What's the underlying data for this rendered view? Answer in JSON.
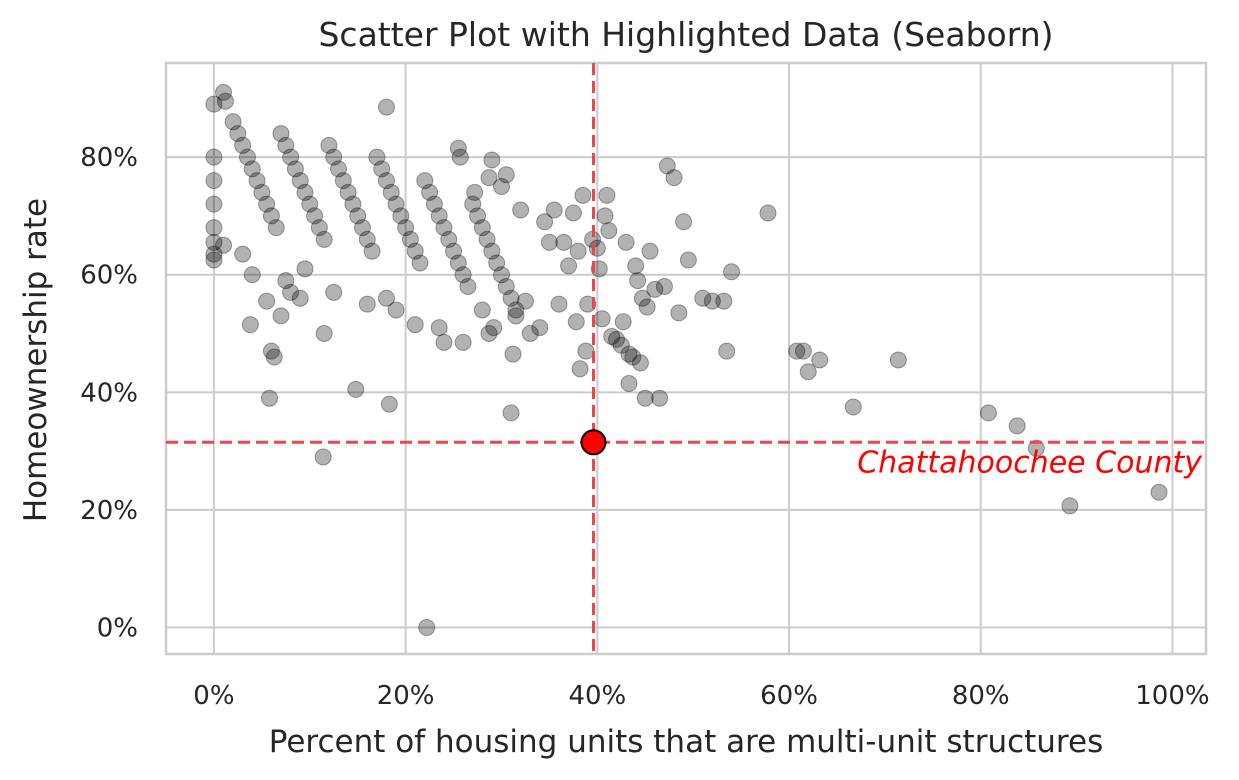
{
  "chart_data": {
    "type": "scatter",
    "title": "Scatter Plot with Highlighted Data (Seaborn)",
    "xlabel": "Percent of housing units that are multi-unit structures",
    "ylabel": "Homeownership rate",
    "xlim": [
      -0.05,
      1.035
    ],
    "ylim": [
      -0.045,
      0.96
    ],
    "xticks": [
      0,
      0.2,
      0.4,
      0.6,
      0.8,
      1.0
    ],
    "xtick_labels": [
      "0%",
      "20%",
      "40%",
      "60%",
      "80%",
      "100%"
    ],
    "yticks": [
      0,
      0.2,
      0.4,
      0.6,
      0.8
    ],
    "ytick_labels": [
      "0%",
      "20%",
      "40%",
      "60%",
      "80%"
    ],
    "grid": true,
    "point_color": "#000000",
    "point_alpha": 0.3,
    "highlight": {
      "label": "Chattahoochee County",
      "x": 0.396,
      "y": 0.315,
      "color": "#ff0000",
      "line_color": "#e8474b"
    },
    "points": [
      [
        0.01,
        0.91
      ],
      [
        0.012,
        0.895
      ],
      [
        0.0,
        0.89
      ],
      [
        0.0,
        0.76
      ],
      [
        0.0,
        0.72
      ],
      [
        0.0,
        0.68
      ],
      [
        0.0,
        0.655
      ],
      [
        0.0,
        0.635
      ],
      [
        0.0,
        0.625
      ],
      [
        0.0,
        0.8
      ],
      [
        0.01,
        0.65
      ],
      [
        0.03,
        0.635
      ],
      [
        0.04,
        0.6
      ],
      [
        0.038,
        0.515
      ],
      [
        0.055,
        0.555
      ],
      [
        0.06,
        0.47
      ],
      [
        0.063,
        0.46
      ],
      [
        0.058,
        0.39
      ],
      [
        0.07,
        0.53
      ],
      [
        0.075,
        0.59
      ],
      [
        0.08,
        0.57
      ],
      [
        0.09,
        0.56
      ],
      [
        0.095,
        0.61
      ],
      [
        0.115,
        0.5
      ],
      [
        0.114,
        0.29
      ],
      [
        0.125,
        0.57
      ],
      [
        0.148,
        0.405
      ],
      [
        0.16,
        0.55
      ],
      [
        0.18,
        0.885
      ],
      [
        0.183,
        0.38
      ],
      [
        0.18,
        0.56
      ],
      [
        0.19,
        0.54
      ],
      [
        0.21,
        0.515
      ],
      [
        0.222,
        0.0
      ],
      [
        0.235,
        0.51
      ],
      [
        0.24,
        0.485
      ],
      [
        0.255,
        0.815
      ],
      [
        0.257,
        0.8
      ],
      [
        0.26,
        0.485
      ],
      [
        0.272,
        0.74
      ],
      [
        0.28,
        0.54
      ],
      [
        0.287,
        0.5
      ],
      [
        0.287,
        0.765
      ],
      [
        0.29,
        0.795
      ],
      [
        0.292,
        0.51
      ],
      [
        0.3,
        0.75
      ],
      [
        0.305,
        0.77
      ],
      [
        0.31,
        0.365
      ],
      [
        0.312,
        0.465
      ],
      [
        0.315,
        0.53
      ],
      [
        0.32,
        0.71
      ],
      [
        0.325,
        0.555
      ],
      [
        0.33,
        0.5
      ],
      [
        0.34,
        0.51
      ],
      [
        0.345,
        0.69
      ],
      [
        0.35,
        0.655
      ],
      [
        0.355,
        0.71
      ],
      [
        0.36,
        0.55
      ],
      [
        0.365,
        0.655
      ],
      [
        0.37,
        0.615
      ],
      [
        0.375,
        0.705
      ],
      [
        0.378,
        0.52
      ],
      [
        0.38,
        0.64
      ],
      [
        0.382,
        0.44
      ],
      [
        0.385,
        0.735
      ],
      [
        0.388,
        0.47
      ],
      [
        0.39,
        0.55
      ],
      [
        0.395,
        0.66
      ],
      [
        0.4,
        0.645
      ],
      [
        0.402,
        0.61
      ],
      [
        0.405,
        0.525
      ],
      [
        0.408,
        0.7
      ],
      [
        0.41,
        0.735
      ],
      [
        0.412,
        0.675
      ],
      [
        0.415,
        0.495
      ],
      [
        0.42,
        0.49
      ],
      [
        0.425,
        0.48
      ],
      [
        0.427,
        0.52
      ],
      [
        0.43,
        0.655
      ],
      [
        0.433,
        0.465
      ],
      [
        0.433,
        0.415
      ],
      [
        0.437,
        0.46
      ],
      [
        0.44,
        0.615
      ],
      [
        0.442,
        0.59
      ],
      [
        0.445,
        0.45
      ],
      [
        0.447,
        0.56
      ],
      [
        0.45,
        0.39
      ],
      [
        0.452,
        0.545
      ],
      [
        0.455,
        0.64
      ],
      [
        0.46,
        0.575
      ],
      [
        0.465,
        0.39
      ],
      [
        0.47,
        0.58
      ],
      [
        0.473,
        0.785
      ],
      [
        0.48,
        0.765
      ],
      [
        0.485,
        0.535
      ],
      [
        0.49,
        0.69
      ],
      [
        0.495,
        0.625
      ],
      [
        0.51,
        0.56
      ],
      [
        0.52,
        0.555
      ],
      [
        0.532,
        0.555
      ],
      [
        0.535,
        0.47
      ],
      [
        0.54,
        0.605
      ],
      [
        0.578,
        0.705
      ],
      [
        0.608,
        0.47
      ],
      [
        0.615,
        0.47
      ],
      [
        0.62,
        0.435
      ],
      [
        0.632,
        0.455
      ],
      [
        0.667,
        0.375
      ],
      [
        0.714,
        0.455
      ],
      [
        0.808,
        0.365
      ],
      [
        0.838,
        0.343
      ],
      [
        0.858,
        0.305
      ],
      [
        0.893,
        0.207
      ],
      [
        0.986,
        0.23
      ],
      [
        0.02,
        0.86
      ],
      [
        0.025,
        0.84
      ],
      [
        0.03,
        0.82
      ],
      [
        0.035,
        0.8
      ],
      [
        0.04,
        0.78
      ],
      [
        0.045,
        0.76
      ],
      [
        0.05,
        0.74
      ],
      [
        0.055,
        0.72
      ],
      [
        0.06,
        0.7
      ],
      [
        0.065,
        0.68
      ],
      [
        0.07,
        0.84
      ],
      [
        0.075,
        0.82
      ],
      [
        0.08,
        0.8
      ],
      [
        0.085,
        0.78
      ],
      [
        0.09,
        0.76
      ],
      [
        0.095,
        0.74
      ],
      [
        0.1,
        0.72
      ],
      [
        0.105,
        0.7
      ],
      [
        0.11,
        0.68
      ],
      [
        0.115,
        0.66
      ],
      [
        0.12,
        0.82
      ],
      [
        0.125,
        0.8
      ],
      [
        0.13,
        0.78
      ],
      [
        0.135,
        0.76
      ],
      [
        0.14,
        0.74
      ],
      [
        0.145,
        0.72
      ],
      [
        0.15,
        0.7
      ],
      [
        0.155,
        0.68
      ],
      [
        0.16,
        0.66
      ],
      [
        0.165,
        0.64
      ],
      [
        0.17,
        0.8
      ],
      [
        0.175,
        0.78
      ],
      [
        0.18,
        0.76
      ],
      [
        0.185,
        0.74
      ],
      [
        0.19,
        0.72
      ],
      [
        0.195,
        0.7
      ],
      [
        0.2,
        0.68
      ],
      [
        0.205,
        0.66
      ],
      [
        0.21,
        0.64
      ],
      [
        0.215,
        0.62
      ],
      [
        0.22,
        0.76
      ],
      [
        0.225,
        0.74
      ],
      [
        0.23,
        0.72
      ],
      [
        0.235,
        0.7
      ],
      [
        0.24,
        0.68
      ],
      [
        0.245,
        0.66
      ],
      [
        0.25,
        0.64
      ],
      [
        0.255,
        0.62
      ],
      [
        0.26,
        0.6
      ],
      [
        0.265,
        0.58
      ],
      [
        0.27,
        0.72
      ],
      [
        0.275,
        0.7
      ],
      [
        0.28,
        0.68
      ],
      [
        0.285,
        0.66
      ],
      [
        0.29,
        0.64
      ],
      [
        0.295,
        0.62
      ],
      [
        0.3,
        0.6
      ],
      [
        0.305,
        0.58
      ],
      [
        0.31,
        0.56
      ],
      [
        0.315,
        0.54
      ]
    ]
  }
}
